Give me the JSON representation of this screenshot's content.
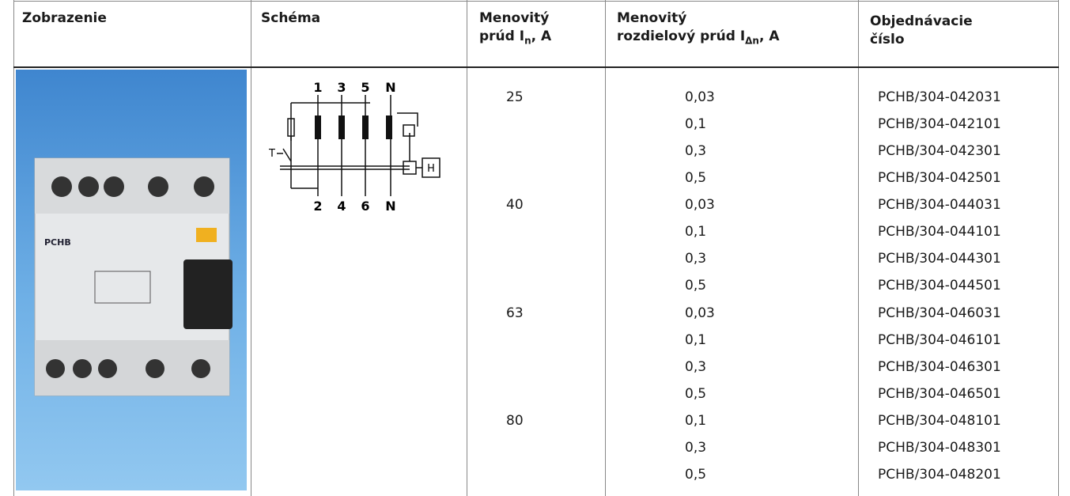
{
  "header": {
    "col1": "Zobrazenie",
    "col2": "Schéma",
    "col3": {
      "line1": "Menovitý",
      "line2": "prúd I",
      "sub": "n",
      "suffix": ", A"
    },
    "col4": {
      "line1": "Menovitý",
      "line2": "rozdielový prúd I",
      "sub": "Δn",
      "suffix": ", A"
    },
    "col5": {
      "line1": "Objednávacie",
      "line2": "číslo"
    }
  },
  "photo": {
    "label": "PCHB"
  },
  "schema": {
    "top_terminals": [
      "1",
      "3",
      "5",
      "N"
    ],
    "bottom_terminals": [
      "2",
      "4",
      "6",
      "N"
    ],
    "switch_label": "T",
    "box_label": "H"
  },
  "groups": [
    {
      "current": "25",
      "rows": [
        {
          "residual": "0,03",
          "order": "PCHB/304-042031"
        },
        {
          "residual": "0,1",
          "order": "PCHB/304-042101"
        },
        {
          "residual": "0,3",
          "order": "PCHB/304-042301"
        },
        {
          "residual": "0,5",
          "order": "PCHB/304-042501"
        }
      ]
    },
    {
      "current": "40",
      "rows": [
        {
          "residual": "0,03",
          "order": "PCHB/304-044031"
        },
        {
          "residual": "0,1",
          "order": "PCHB/304-044101"
        },
        {
          "residual": "0,3",
          "order": "PCHB/304-044301"
        },
        {
          "residual": "0,5",
          "order": "PCHB/304-044501"
        }
      ]
    },
    {
      "current": "63",
      "rows": [
        {
          "residual": "0,03",
          "order": "PCHB/304-046031"
        },
        {
          "residual": "0,1",
          "order": "PCHB/304-046101"
        },
        {
          "residual": "0,3",
          "order": "PCHB/304-046301"
        },
        {
          "residual": "0,5",
          "order": "PCHB/304-046501"
        }
      ]
    },
    {
      "current": "80",
      "rows": [
        {
          "residual": "0,1",
          "order": "PCHB/304-048101"
        },
        {
          "residual": "0,3",
          "order": "PCHB/304-048301"
        },
        {
          "residual": "0,5",
          "order": "PCHB/304-048201"
        }
      ]
    }
  ]
}
